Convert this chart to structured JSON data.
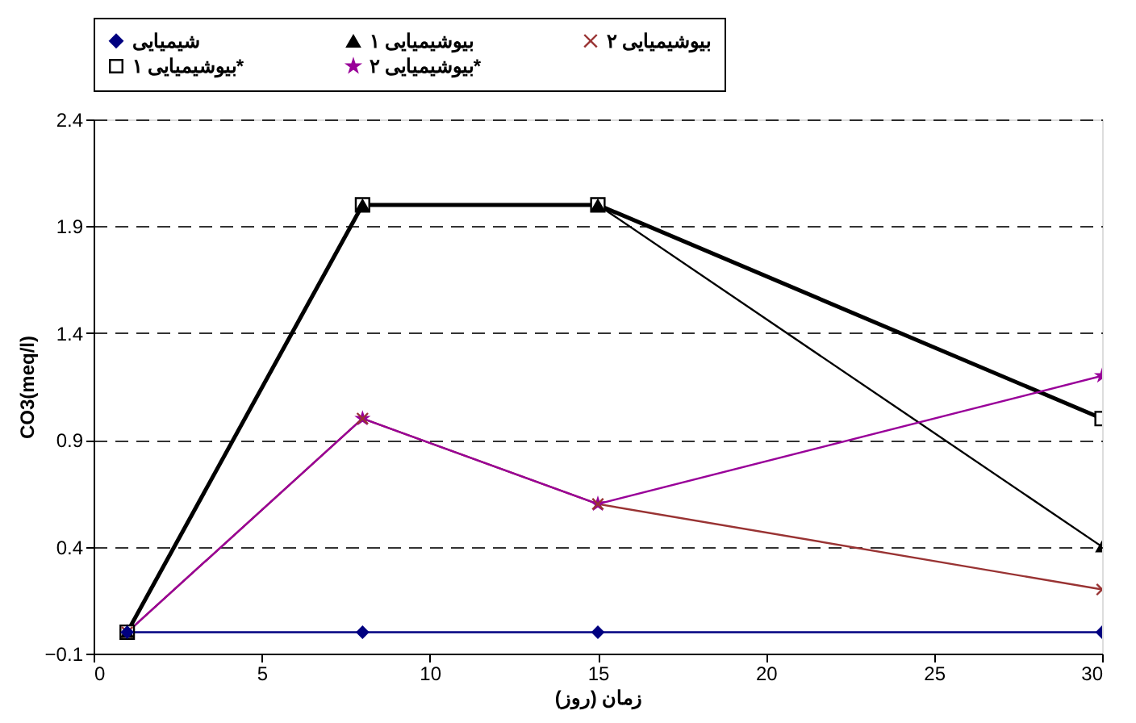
{
  "chart_data": {
    "type": "line",
    "xlabel": "زمان (روز)",
    "ylabel": "CO3(meq/l)",
    "x": [
      1,
      8,
      15,
      30
    ],
    "series": [
      {
        "name": "شیمیایی",
        "color": "#000080",
        "marker": "diamond",
        "values": [
          0,
          0,
          0,
          0
        ]
      },
      {
        "name": "بیوشیمیایی ۱",
        "color": "#000000",
        "marker": "triangle",
        "values": [
          0,
          2.0,
          2.0,
          0.4
        ]
      },
      {
        "name": "بیوشیمیایی ۲",
        "color": "#993333",
        "marker": "cross",
        "values": [
          0,
          1.0,
          0.6,
          0.2
        ]
      },
      {
        "name": "بیوشیمیایی ۱*",
        "color": "#000000",
        "marker": "square",
        "values": [
          0,
          2.0,
          2.0,
          1.0
        ]
      },
      {
        "name": "بیوشیمیایی ۲*",
        "color": "#990099",
        "marker": "star",
        "values": [
          0,
          1.0,
          0.6,
          1.2
        ]
      }
    ],
    "xlim": [
      0,
      30
    ],
    "xticks": [
      0,
      5,
      10,
      15,
      20,
      25,
      30
    ],
    "ylim": [
      -0.1,
      2.4
    ],
    "yticks": [
      -0.1,
      0.4,
      0.9,
      1.4,
      1.9,
      2.4
    ],
    "grid": "y",
    "legend": "top",
    "line_style": "solid"
  }
}
